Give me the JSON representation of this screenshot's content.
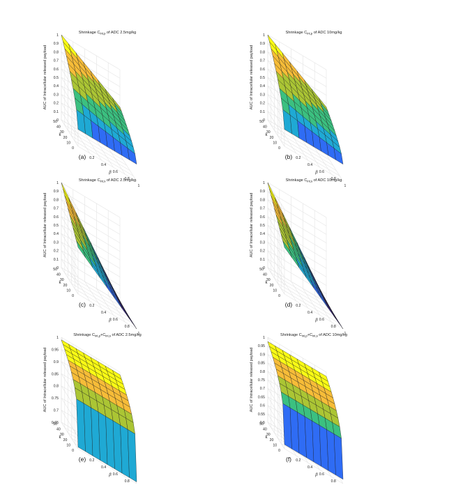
{
  "chart_data": [
    {
      "type": "surface",
      "panel_label": "(a)",
      "title": {
        "main": "Shrinkage C",
        "sub": "int,p",
        "rest": " of ADC 2.5mg/kg"
      },
      "zlabel": "AUC of Intracellular released payload",
      "xlabel": "k",
      "ylabel": "β",
      "x_ticks": [
        "0",
        "10",
        "20",
        "30",
        "40",
        "50"
      ],
      "y_ticks": [
        "0.2",
        "0.4",
        "0.6",
        "0.8",
        "1"
      ],
      "z_ticks": [
        "0",
        "0.1",
        "0.2",
        "0.3",
        "0.4",
        "0.5",
        "0.6",
        "0.7",
        "0.8",
        "0.9",
        "1"
      ],
      "xlim": [
        0,
        50
      ],
      "ylim": [
        0,
        1
      ],
      "zlim": [
        0,
        1
      ],
      "colormap": [
        "#3e26a8",
        "#2f6cf4",
        "#1fa9d4",
        "#3bc080",
        "#abc534",
        "#f6bc38",
        "#f9fb15"
      ],
      "grid": true
    },
    {
      "type": "surface",
      "panel_label": "(b)",
      "title": {
        "main": "Shrinkage C",
        "sub": "int,p",
        "rest": " of ADC 10mg/kg"
      },
      "zlabel": "AUC of Intracellular released payload",
      "xlabel": "k",
      "ylabel": "β",
      "x_ticks": [
        "0",
        "10",
        "20",
        "30",
        "40",
        "50"
      ],
      "y_ticks": [
        "0.2",
        "0.4",
        "0.6",
        "0.8",
        "1"
      ],
      "z_ticks": [
        "0",
        "0.1",
        "0.2",
        "0.3",
        "0.4",
        "0.5",
        "0.6",
        "0.7",
        "0.8",
        "0.9",
        "1"
      ],
      "xlim": [
        0,
        50
      ],
      "ylim": [
        0,
        1
      ],
      "zlim": [
        0,
        1
      ],
      "colormap": [
        "#3e26a8",
        "#2f6cf4",
        "#1fa9d4",
        "#3bc080",
        "#abc534",
        "#f6bc38",
        "#f9fb15"
      ],
      "grid": true
    },
    {
      "type": "surface",
      "panel_label": "(c)",
      "title": {
        "main": "Shrinkage C",
        "sub": "int,s",
        "rest": " of ADC 2.5mg/kg"
      },
      "zlabel": "AUC of Intracellular released payload",
      "xlabel": "k",
      "ylabel": "β",
      "x_ticks": [
        "0",
        "10",
        "20",
        "30",
        "40",
        "50"
      ],
      "y_ticks": [
        "0.2",
        "0.4",
        "0.6",
        "0.8",
        "1"
      ],
      "z_ticks": [
        "0",
        "0.1",
        "0.2",
        "0.3",
        "0.4",
        "0.5",
        "0.6",
        "0.7",
        "0.8",
        "0.9",
        "1"
      ],
      "xlim": [
        0,
        50
      ],
      "ylim": [
        0,
        1
      ],
      "zlim": [
        0,
        1
      ],
      "colormap": [
        "#3e26a8",
        "#2f6cf4",
        "#1fa9d4",
        "#3bc080",
        "#abc534",
        "#f6bc38",
        "#f9fb15"
      ],
      "grid": true
    },
    {
      "type": "surface",
      "panel_label": "(d)",
      "title": {
        "main": "Shrinkage C",
        "sub": "int,s",
        "rest": " of ADC 10mg/kg"
      },
      "zlabel": "AUC of Intracellular released payload",
      "xlabel": "k",
      "ylabel": "β",
      "x_ticks": [
        "0",
        "10",
        "20",
        "30",
        "40",
        "50"
      ],
      "y_ticks": [
        "0.2",
        "0.4",
        "0.6",
        "0.8",
        "1"
      ],
      "z_ticks": [
        "0",
        "0.1",
        "0.2",
        "0.3",
        "0.4",
        "0.5",
        "0.6",
        "0.7",
        "0.8",
        "0.9",
        "1"
      ],
      "xlim": [
        0,
        50
      ],
      "ylim": [
        0,
        1
      ],
      "zlim": [
        0,
        1
      ],
      "colormap": [
        "#3e26a8",
        "#2f6cf4",
        "#1fa9d4",
        "#3bc080",
        "#abc534",
        "#f6bc38",
        "#f9fb15"
      ],
      "grid": true
    },
    {
      "type": "surface",
      "panel_label": "(e)",
      "title": {
        "main": "Shrinkage C",
        "sub": "int,p",
        "rest": "+C",
        "sub2": "int,s",
        "rest2": " of ADC 2.5mg/kg"
      },
      "zlabel": "AUC of Intracellular released payload",
      "xlabel": "k",
      "ylabel": "β",
      "x_ticks": [
        "0",
        "10",
        "20",
        "30",
        "40",
        "50"
      ],
      "y_ticks": [
        "0.2",
        "0.4",
        "0.6",
        "0.8",
        "1"
      ],
      "z_ticks": [
        "0.65",
        "0.7",
        "0.75",
        "0.8",
        "0.85",
        "0.9",
        "0.95",
        "1"
      ],
      "xlim": [
        0,
        50
      ],
      "ylim": [
        0,
        1
      ],
      "zlim": [
        0.65,
        1
      ],
      "colormap": [
        "#3e26a8",
        "#2f6cf4",
        "#1fa9d4",
        "#3bc080",
        "#abc534",
        "#f6bc38",
        "#f9fb15"
      ],
      "grid": true
    },
    {
      "type": "surface",
      "panel_label": "(f)",
      "title": {
        "main": "Shrinkage C",
        "sub": "int,p",
        "rest": "+C",
        "sub2": "int,s",
        "rest2": " of ADC 10mg/kg"
      },
      "zlabel": "AUC of Intracellular released payload",
      "xlabel": "k",
      "ylabel": "β",
      "x_ticks": [
        "0",
        "10",
        "20",
        "30",
        "40",
        "50"
      ],
      "y_ticks": [
        "0.2",
        "0.4",
        "0.6",
        "0.8",
        "1"
      ],
      "z_ticks": [
        "0.5",
        "0.55",
        "0.6",
        "0.65",
        "0.7",
        "0.75",
        "0.8",
        "0.85",
        "0.9",
        "0.95",
        "1"
      ],
      "xlim": [
        0,
        50
      ],
      "ylim": [
        0,
        1
      ],
      "zlim": [
        0.5,
        1
      ],
      "colormap": [
        "#3e26a8",
        "#2f6cf4",
        "#1fa9d4",
        "#3bc080",
        "#abc534",
        "#f6bc38",
        "#f9fb15"
      ],
      "grid": true
    }
  ]
}
